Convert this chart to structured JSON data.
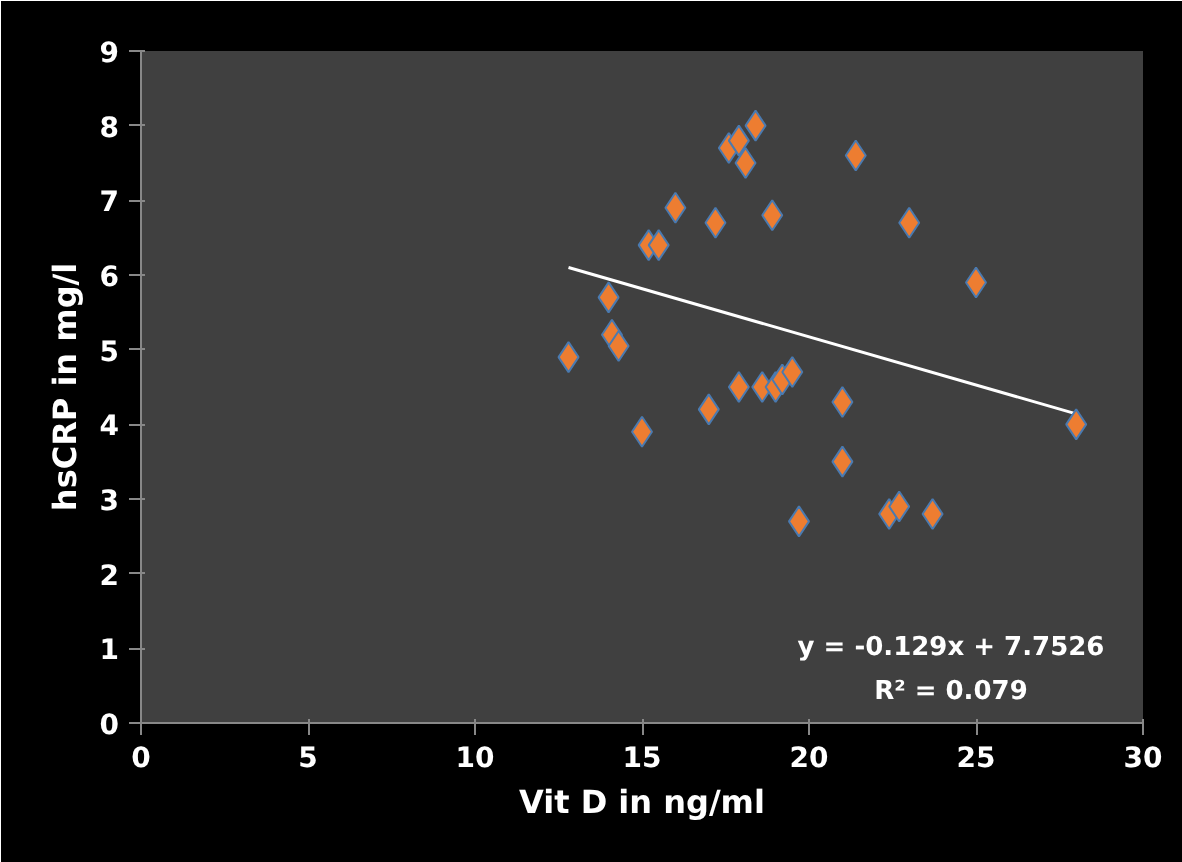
{
  "chart_data": {
    "type": "scatter",
    "xlabel": "Vit D in ng/ml",
    "ylabel": "hsCRP in mg/l",
    "xlim": [
      0,
      30
    ],
    "xticks": [
      0,
      5,
      10,
      15,
      20,
      25,
      30
    ],
    "ylim": [
      0,
      9
    ],
    "yticks": [
      0,
      1,
      2,
      3,
      4,
      5,
      6,
      7,
      8,
      9
    ],
    "grid": false,
    "marker": "diamond",
    "series": [
      {
        "color": "#ed7d31",
        "x": [
          12.8,
          14.0,
          14.1,
          14.3,
          15.0,
          15.2,
          15.5,
          16.0,
          17.0,
          17.2,
          17.6,
          17.9,
          17.9,
          18.1,
          18.4,
          18.6,
          18.9,
          19.0,
          19.2,
          19.5,
          19.7,
          21.0,
          21.0,
          21.4,
          22.4,
          22.7,
          23.0,
          23.7,
          25.0,
          28.0
        ],
        "values": [
          4.9,
          5.7,
          5.2,
          5.05,
          3.9,
          6.4,
          6.4,
          6.9,
          4.2,
          6.7,
          7.7,
          4.5,
          7.8,
          7.5,
          8.0,
          4.5,
          6.8,
          4.5,
          4.6,
          4.7,
          2.7,
          4.3,
          3.5,
          7.6,
          2.8,
          2.9,
          6.7,
          2.8,
          5.9,
          4.0
        ]
      },
      {
        "type": "line",
        "marker": "none",
        "color": "#ffffff",
        "x": [
          12.8,
          28.0
        ],
        "values": [
          6.1,
          4.14
        ]
      }
    ],
    "annotations": [
      "y = -0.129x + 7.7526",
      "R² = 0.079"
    ]
  }
}
